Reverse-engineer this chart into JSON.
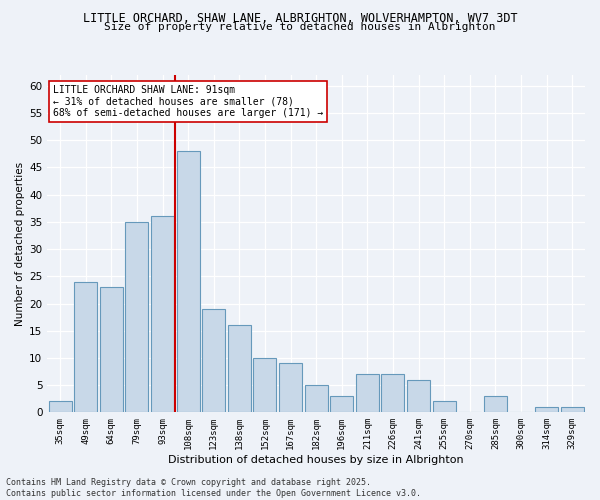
{
  "title_line1": "LITTLE ORCHARD, SHAW LANE, ALBRIGHTON, WOLVERHAMPTON, WV7 3DT",
  "title_line2": "Size of property relative to detached houses in Albrighton",
  "xlabel": "Distribution of detached houses by size in Albrighton",
  "ylabel": "Number of detached properties",
  "categories": [
    "35sqm",
    "49sqm",
    "64sqm",
    "79sqm",
    "93sqm",
    "108sqm",
    "123sqm",
    "138sqm",
    "152sqm",
    "167sqm",
    "182sqm",
    "196sqm",
    "211sqm",
    "226sqm",
    "241sqm",
    "255sqm",
    "270sqm",
    "285sqm",
    "300sqm",
    "314sqm",
    "329sqm"
  ],
  "values": [
    2,
    24,
    23,
    35,
    36,
    48,
    19,
    16,
    10,
    9,
    5,
    3,
    7,
    7,
    6,
    2,
    0,
    3,
    0,
    1,
    1
  ],
  "bar_color": "#c8d8e8",
  "bar_edge_color": "#6699bb",
  "vline_x": 4.5,
  "vline_color": "#cc0000",
  "annotation_text": "LITTLE ORCHARD SHAW LANE: 91sqm\n← 31% of detached houses are smaller (78)\n68% of semi-detached houses are larger (171) →",
  "annotation_box_color": "white",
  "annotation_box_edge": "#cc0000",
  "ylim": [
    0,
    62
  ],
  "yticks": [
    0,
    5,
    10,
    15,
    20,
    25,
    30,
    35,
    40,
    45,
    50,
    55,
    60
  ],
  "bg_color": "#eef2f8",
  "grid_color": "#ffffff",
  "footer": "Contains HM Land Registry data © Crown copyright and database right 2025.\nContains public sector information licensed under the Open Government Licence v3.0."
}
